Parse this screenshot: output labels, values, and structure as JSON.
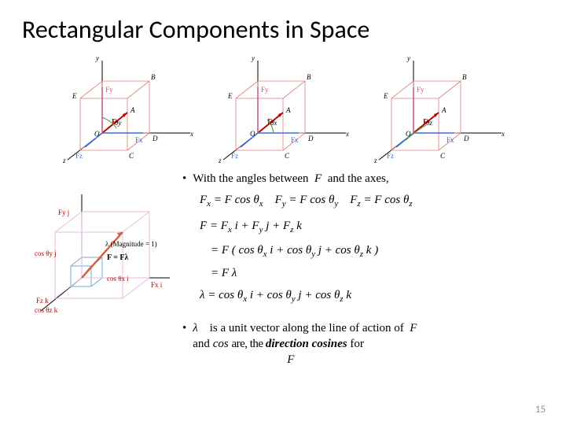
{
  "title": "Rectangular Components in Space",
  "page_number": "15",
  "colors": {
    "axes": "#000000",
    "vector_F": "#c00000",
    "components_xz": "#3a6fd8",
    "components_y": "#cc5a8a",
    "box_edges": "#e07a7a",
    "arc": "#5aa02c",
    "unit_cube": "#6faed8",
    "unit_diag": "#d95b3a",
    "unit_edges": "#e8b8e0"
  },
  "figures": {
    "top": [
      {
        "angle_label": "θy",
        "labels": {
          "O": "O",
          "A": "A",
          "B": "B",
          "C": "C",
          "D": "D",
          "E": "E",
          "F": "F",
          "Fx": "Fx",
          "Fy": "Fy",
          "Fz": "Fz",
          "x": "x",
          "y": "y",
          "z": "z"
        }
      },
      {
        "angle_label": "θx",
        "labels": {
          "O": "O",
          "A": "A",
          "B": "B",
          "C": "C",
          "D": "D",
          "E": "E",
          "F": "F",
          "Fx": "Fx",
          "Fy": "Fy",
          "Fz": "Fz",
          "x": "x",
          "y": "y",
          "z": "z"
        }
      },
      {
        "angle_label": "θz",
        "labels": {
          "O": "O",
          "A": "A",
          "B": "B",
          "C": "C",
          "D": "D",
          "E": "E",
          "F": "F",
          "Fx": "Fx",
          "Fy": "Fy",
          "Fz": "Fz",
          "x": "x",
          "y": "y",
          "z": "z"
        }
      }
    ],
    "side": {
      "labels": {
        "cos_thetay_j": "cos θy j",
        "cos_thetax_i": "cos θx i",
        "cos_thetaz_k": "cos θz k",
        "lambda_mag": "λ (Magnitude = 1)",
        "F_eq": "F = Fλ",
        "Fy_j": "Fy j",
        "Fx_i": "Fx i",
        "Fz_k": "Fz k"
      }
    }
  },
  "bullets": {
    "b1_pre": "With the angles between",
    "b1_post": "and the axes,",
    "b2_pre": "is a unit vector along the line of action of",
    "b2_line2a": "and",
    "b2_cos": "cos",
    "b2_garble": "are, the direction, cosines",
    "b2_bold": "direction cosines",
    "b2_line2b": "for"
  },
  "equations": {
    "line1": {
      "a": "F",
      "ax": "x",
      "eq": " = F cos θ",
      "b": "F",
      "by": "y",
      "c": "F",
      "cz": "z"
    },
    "line2_lhs": "F",
    "line2_rhs": " = Fx i + Fy j + Fz k",
    "line3": " = F ( cos θx i + cos θy j + cos θz k )",
    "line4": " = F λ",
    "line5": "λ = cos θx i + cos θy j + cos θz k"
  }
}
